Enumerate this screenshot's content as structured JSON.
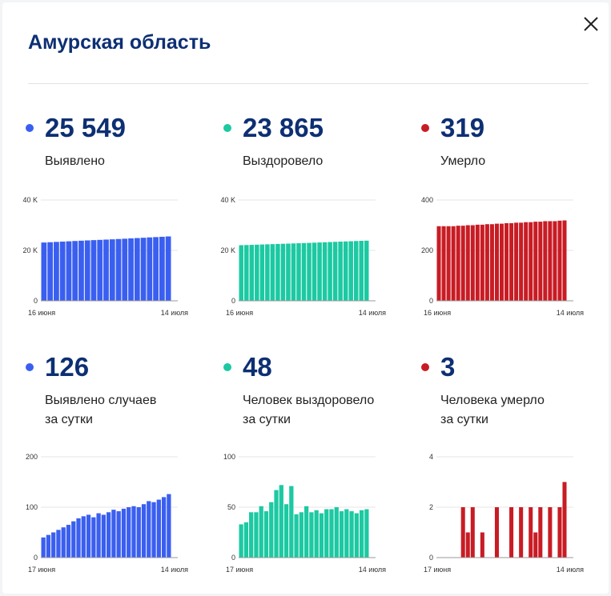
{
  "title": "Амурская область",
  "close_icon": "close-icon",
  "colors": {
    "blue": "#3a5ff0",
    "green": "#1cc9a2",
    "red": "#c81c24"
  },
  "cards": [
    {
      "id": "detected",
      "value": "25 549",
      "label_line1": "Выявлено",
      "label_line2": "",
      "color": "#3a5ff0"
    },
    {
      "id": "recovered",
      "value": "23 865",
      "label_line1": "Выздоровело",
      "label_line2": "",
      "color": "#1cc9a2"
    },
    {
      "id": "died",
      "value": "319",
      "label_line1": "Умерло",
      "label_line2": "",
      "color": "#c81c24"
    },
    {
      "id": "detected-daily",
      "value": "126",
      "label_line1": "Выявлено случаев",
      "label_line2": "за сутки",
      "color": "#3a5ff0"
    },
    {
      "id": "recovered-daily",
      "value": "48",
      "label_line1": "Человек выздоровело",
      "label_line2": "за сутки",
      "color": "#1cc9a2"
    },
    {
      "id": "died-daily",
      "value": "3",
      "label_line1": "Человека умерло",
      "label_line2": "за сутки",
      "color": "#c81c24"
    }
  ],
  "chart_data": [
    {
      "type": "bar",
      "title": "",
      "xlabel": "",
      "ylabel": "",
      "grid": true,
      "series": [
        {
          "values": [
            23130,
            23250,
            23370,
            23490,
            23610,
            23730,
            23850,
            23970,
            24080,
            24180,
            24290,
            24400,
            24520,
            24640,
            24770,
            24890,
            25020,
            25160,
            25280,
            25400,
            25549
          ]
        }
      ],
      "ylim": [
        0,
        40000
      ],
      "yticks": [
        {
          "value": 0,
          "label": "0"
        },
        {
          "value": 20000,
          "label": "20 K"
        },
        {
          "value": 40000,
          "label": "40 K"
        }
      ],
      "x_first_label": "16 июня",
      "x_last_label": "14 июля",
      "color": "#3a5ff0"
    },
    {
      "type": "bar",
      "title": "",
      "xlabel": "",
      "ylabel": "",
      "grid": true,
      "series": [
        {
          "values": [
            22070,
            22130,
            22200,
            22270,
            22350,
            22420,
            22490,
            22560,
            22630,
            22700,
            22770,
            22840,
            22910,
            22990,
            23070,
            23150,
            23230,
            23310,
            23400,
            23480,
            23560,
            23640,
            23720,
            23800,
            23865
          ]
        }
      ],
      "ylim": [
        0,
        40000
      ],
      "yticks": [
        {
          "value": 0,
          "label": "0"
        },
        {
          "value": 20000,
          "label": "20 K"
        },
        {
          "value": 40000,
          "label": "40 K"
        }
      ],
      "x_first_label": "16 июня",
      "x_last_label": "14 июля",
      "color": "#1cc9a2"
    },
    {
      "type": "bar",
      "title": "",
      "xlabel": "",
      "ylabel": "",
      "grid": true,
      "series": [
        {
          "values": [
            296,
            296,
            296,
            296,
            298,
            298,
            300,
            300,
            302,
            302,
            304,
            304,
            306,
            306,
            308,
            308,
            310,
            310,
            312,
            312,
            314,
            314,
            316,
            316,
            316,
            318,
            319
          ]
        }
      ],
      "ylim": [
        0,
        400
      ],
      "yticks": [
        {
          "value": 0,
          "label": "0"
        },
        {
          "value": 200,
          "label": "200"
        },
        {
          "value": 400,
          "label": "400"
        }
      ],
      "x_first_label": "16 июня",
      "x_last_label": "14 июля",
      "color": "#c81c24"
    },
    {
      "type": "bar",
      "title": "",
      "xlabel": "",
      "ylabel": "",
      "grid": true,
      "series": [
        {
          "values": [
            40,
            45,
            50,
            55,
            60,
            65,
            72,
            78,
            82,
            85,
            80,
            88,
            85,
            90,
            95,
            92,
            97,
            100,
            102,
            100,
            106,
            112,
            110,
            115,
            120,
            126
          ]
        }
      ],
      "ylim": [
        0,
        200
      ],
      "yticks": [
        {
          "value": 0,
          "label": "0"
        },
        {
          "value": 100,
          "label": "100"
        },
        {
          "value": 200,
          "label": "200"
        }
      ],
      "x_first_label": "17 июня",
      "x_last_label": "14 июля",
      "color": "#3a5ff0"
    },
    {
      "type": "bar",
      "title": "",
      "xlabel": "",
      "ylabel": "",
      "grid": true,
      "series": [
        {
          "values": [
            33,
            35,
            45,
            45,
            51,
            46,
            55,
            67,
            72,
            53,
            71,
            43,
            45,
            51,
            45,
            47,
            44,
            48,
            48,
            50,
            46,
            48,
            46,
            44,
            47,
            48
          ]
        }
      ],
      "ylim": [
        0,
        100
      ],
      "yticks": [
        {
          "value": 0,
          "label": "0"
        },
        {
          "value": 50,
          "label": "50"
        },
        {
          "value": 100,
          "label": "100"
        }
      ],
      "x_first_label": "17 июня",
      "x_last_label": "14 июля",
      "color": "#1cc9a2"
    },
    {
      "type": "bar",
      "title": "",
      "xlabel": "",
      "ylabel": "",
      "grid": true,
      "series": [
        {
          "values": [
            0,
            0,
            0,
            0,
            0,
            2,
            1,
            2,
            0,
            1,
            0,
            0,
            2,
            0,
            0,
            2,
            0,
            2,
            0,
            2,
            1,
            2,
            0,
            2,
            0,
            2,
            3
          ]
        }
      ],
      "ylim": [
        0,
        4
      ],
      "yticks": [
        {
          "value": 0,
          "label": "0"
        },
        {
          "value": 2,
          "label": "2"
        },
        {
          "value": 4,
          "label": "4"
        }
      ],
      "x_first_label": "17 июня",
      "x_last_label": "14 июля",
      "color": "#c81c24"
    }
  ]
}
